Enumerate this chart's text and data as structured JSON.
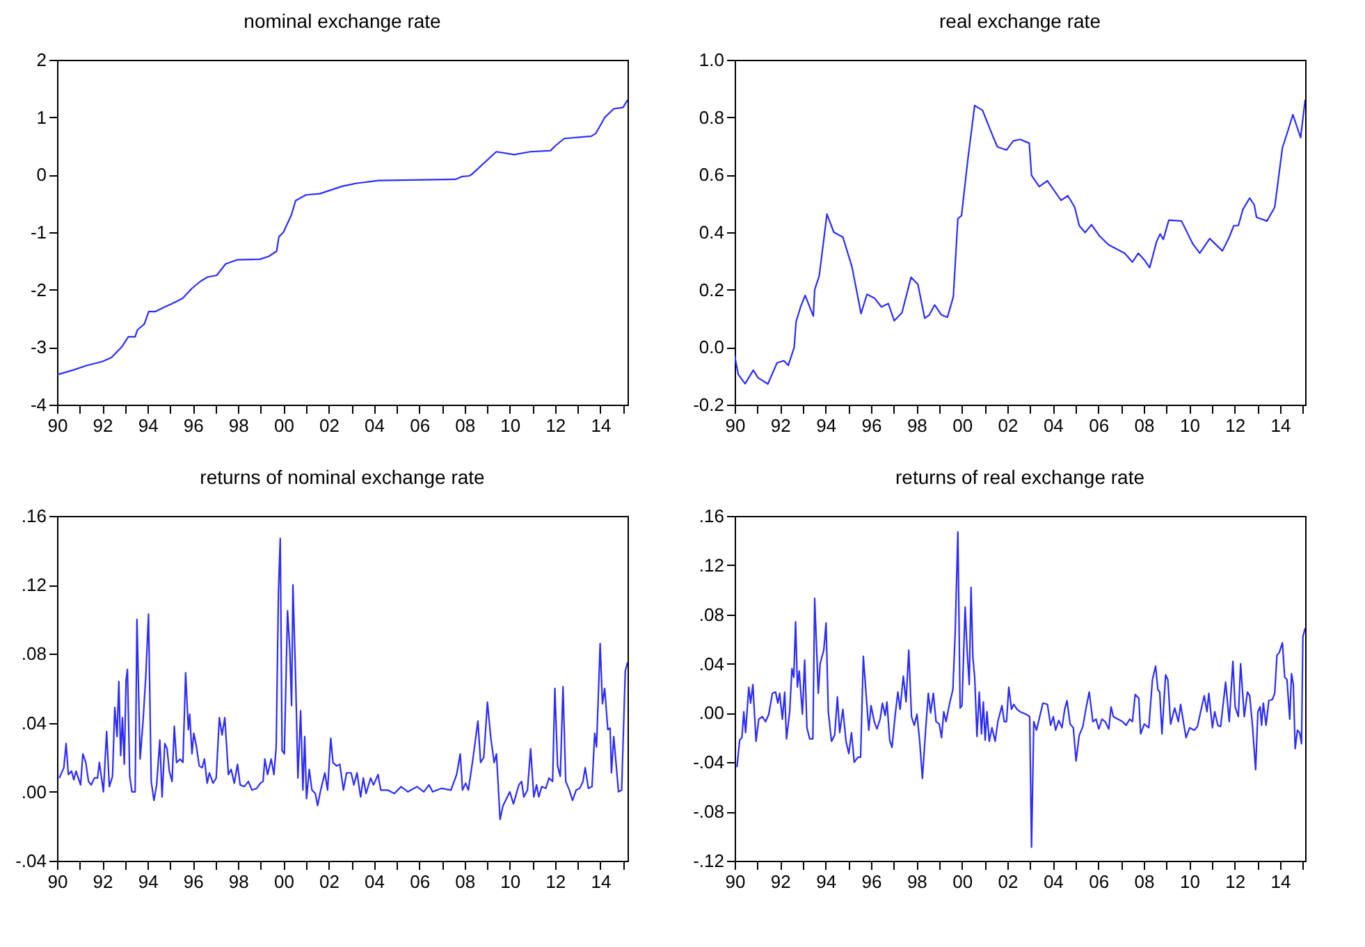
{
  "chart_data": [
    {
      "type": "line",
      "title": "nominal exchange rate",
      "x": [
        1990.0,
        1990.7,
        1991.3,
        1992.0,
        1992.4,
        1992.85,
        1993.15,
        1993.45,
        1993.55,
        1993.85,
        1994.05,
        1994.35,
        1994.75,
        1995.05,
        1995.55,
        1995.95,
        1996.35,
        1996.65,
        1997.05,
        1997.45,
        1997.95,
        1998.95,
        1999.35,
        1999.7,
        1999.8,
        2000.0,
        2000.35,
        2000.54,
        2001.0,
        2001.6,
        2002.6,
        2003.2,
        2004.2,
        2007.6,
        2007.9,
        2008.2,
        2008.3,
        2009.4,
        2010.2,
        2010.9,
        2011.8,
        2012.0,
        2012.4,
        2013.6,
        2013.8,
        2014.2,
        2014.6,
        2015.0,
        2015.2
      ],
      "series": [
        {
          "color": "#2b2bff",
          "values": [
            -3.48,
            -3.4,
            -3.32,
            -3.25,
            -3.18,
            -3.0,
            -2.82,
            -2.82,
            -2.7,
            -2.6,
            -2.38,
            -2.38,
            -2.3,
            -2.25,
            -2.15,
            -1.98,
            -1.85,
            -1.78,
            -1.75,
            -1.55,
            -1.48,
            -1.47,
            -1.42,
            -1.33,
            -1.08,
            -1.0,
            -0.7,
            -0.45,
            -0.35,
            -0.33,
            -0.2,
            -0.15,
            -0.1,
            -0.08,
            -0.03,
            -0.02,
            0.0,
            0.4,
            0.35,
            0.4,
            0.42,
            0.5,
            0.63,
            0.67,
            0.72,
            1.0,
            1.15,
            1.17,
            1.3
          ]
        }
      ],
      "xlim": [
        1990,
        2015.2
      ],
      "ylim": [
        -4,
        2
      ],
      "yticks": [
        -4,
        -3,
        -2,
        -1,
        0,
        1,
        2
      ],
      "xticks": [
        {
          "value": 1990,
          "label": "90"
        },
        {
          "value": 1991,
          "label": null
        },
        {
          "value": 1992,
          "label": "92"
        },
        {
          "value": 1993,
          "label": null
        },
        {
          "value": 1994,
          "label": "94"
        },
        {
          "value": 1995,
          "label": null
        },
        {
          "value": 1996,
          "label": "96"
        },
        {
          "value": 1997,
          "label": null
        },
        {
          "value": 1998,
          "label": "98"
        },
        {
          "value": 1999,
          "label": null
        },
        {
          "value": 2000,
          "label": "00"
        },
        {
          "value": 2001,
          "label": null
        },
        {
          "value": 2002,
          "label": "02"
        },
        {
          "value": 2003,
          "label": null
        },
        {
          "value": 2004,
          "label": "04"
        },
        {
          "value": 2005,
          "label": null
        },
        {
          "value": 2006,
          "label": "06"
        },
        {
          "value": 2007,
          "label": null
        },
        {
          "value": 2008,
          "label": "08"
        },
        {
          "value": 2009,
          "label": null
        },
        {
          "value": 2010,
          "label": "10"
        },
        {
          "value": 2011,
          "label": null
        },
        {
          "value": 2012,
          "label": "12"
        },
        {
          "value": 2013,
          "label": null
        },
        {
          "value": 2014,
          "label": "14"
        },
        {
          "value": 2015,
          "label": null
        }
      ],
      "grid": false,
      "line_style": "solid"
    },
    {
      "type": "line",
      "title": "real exchange rate",
      "x": [
        1990.0,
        1990.16,
        1990.46,
        1990.82,
        1991.02,
        1991.46,
        1991.86,
        1992.16,
        1992.36,
        1992.62,
        1992.7,
        1992.9,
        1993.1,
        1993.46,
        1993.52,
        1993.72,
        1994.06,
        1994.36,
        1994.76,
        1995.16,
        1995.56,
        1995.82,
        1996.16,
        1996.46,
        1996.76,
        1997.02,
        1997.36,
        1997.76,
        1998.06,
        1998.36,
        1998.56,
        1998.8,
        1999.1,
        1999.36,
        1999.62,
        1999.82,
        1999.98,
        2000.26,
        2000.56,
        2000.7,
        2000.9,
        2001.36,
        2001.56,
        2001.96,
        2002.26,
        2002.56,
        2002.96,
        2003.06,
        2003.4,
        2003.76,
        2004.36,
        2004.66,
        2004.96,
        2005.16,
        2005.42,
        2005.7,
        2006.06,
        2006.46,
        2007.16,
        2007.5,
        2007.76,
        2008.02,
        2008.26,
        2008.56,
        2008.72,
        2008.86,
        2009.1,
        2009.66,
        2010.16,
        2010.46,
        2010.9,
        2011.46,
        2011.76,
        2011.96,
        2012.16,
        2012.36,
        2012.66,
        2012.86,
        2012.96,
        2013.42,
        2013.76,
        2014.1,
        2014.36,
        2014.56,
        2014.9,
        2015.1
      ],
      "series": [
        {
          "color": "#2b2bff",
          "values": [
            -0.03,
            -0.095,
            -0.127,
            -0.08,
            -0.106,
            -0.128,
            -0.055,
            -0.047,
            -0.063,
            0.0,
            0.088,
            0.14,
            0.18,
            0.108,
            0.2,
            0.248,
            0.463,
            0.4,
            0.383,
            0.28,
            0.117,
            0.184,
            0.17,
            0.14,
            0.152,
            0.092,
            0.12,
            0.243,
            0.219,
            0.101,
            0.112,
            0.147,
            0.112,
            0.104,
            0.176,
            0.447,
            0.458,
            0.654,
            0.841,
            0.834,
            0.825,
            0.734,
            0.697,
            0.686,
            0.718,
            0.723,
            0.71,
            0.598,
            0.559,
            0.579,
            0.511,
            0.527,
            0.487,
            0.423,
            0.399,
            0.426,
            0.386,
            0.356,
            0.327,
            0.296,
            0.327,
            0.304,
            0.277,
            0.367,
            0.394,
            0.375,
            0.442,
            0.439,
            0.359,
            0.327,
            0.378,
            0.335,
            0.383,
            0.423,
            0.423,
            0.479,
            0.519,
            0.495,
            0.452,
            0.439,
            0.487,
            0.694,
            0.758,
            0.809,
            0.729,
            0.861
          ]
        }
      ],
      "xlim": [
        1990,
        2015.1
      ],
      "ylim": [
        -0.2,
        1.0
      ],
      "yticks": [
        {
          "value": -0.2,
          "label": "-0.2"
        },
        {
          "value": 0,
          "label": "0.0"
        },
        {
          "value": 0.2,
          "label": "0.2"
        },
        {
          "value": 0.4,
          "label": "0.4"
        },
        {
          "value": 0.6,
          "label": "0.6"
        },
        {
          "value": 0.8,
          "label": "0.8"
        },
        {
          "value": 1.0,
          "label": "1.0"
        }
      ],
      "xticks": [
        {
          "value": 1990,
          "label": "90"
        },
        {
          "value": 1991,
          "label": null
        },
        {
          "value": 1992,
          "label": "92"
        },
        {
          "value": 1993,
          "label": null
        },
        {
          "value": 1994,
          "label": "94"
        },
        {
          "value": 1995,
          "label": null
        },
        {
          "value": 1996,
          "label": "96"
        },
        {
          "value": 1997,
          "label": null
        },
        {
          "value": 1998,
          "label": "98"
        },
        {
          "value": 1999,
          "label": null
        },
        {
          "value": 2000,
          "label": "00"
        },
        {
          "value": 2001,
          "label": null
        },
        {
          "value": 2002,
          "label": "02"
        },
        {
          "value": 2003,
          "label": null
        },
        {
          "value": 2004,
          "label": "04"
        },
        {
          "value": 2005,
          "label": null
        },
        {
          "value": 2006,
          "label": "06"
        },
        {
          "value": 2007,
          "label": null
        },
        {
          "value": 2008,
          "label": "08"
        },
        {
          "value": 2009,
          "label": null
        },
        {
          "value": 2010,
          "label": "10"
        },
        {
          "value": 2011,
          "label": null
        },
        {
          "value": 2012,
          "label": "12"
        },
        {
          "value": 2013,
          "label": null
        },
        {
          "value": 2014,
          "label": "14"
        },
        {
          "value": 2015,
          "label": null
        }
      ],
      "grid": false,
      "line_style": "solid"
    },
    {
      "type": "line",
      "title": "returns of nominal exchange rate",
      "x": [
        1990.1,
        1990.3,
        1990.4,
        1990.5,
        1990.64,
        1990.74,
        1990.84,
        1991.04,
        1991.14,
        1991.27,
        1991.39,
        1991.51,
        1991.65,
        1991.79,
        1991.87,
        1992.05,
        1992.19,
        1992.31,
        1992.45,
        1992.55,
        1992.65,
        1992.73,
        1992.81,
        1992.89,
        1992.97,
        1993.05,
        1993.11,
        1993.21,
        1993.31,
        1993.45,
        1993.53,
        1993.67,
        1993.8,
        1993.92,
        1994.04,
        1994.16,
        1994.28,
        1994.4,
        1994.54,
        1994.64,
        1994.76,
        1994.86,
        1994.96,
        1995.08,
        1995.18,
        1995.28,
        1995.44,
        1995.56,
        1995.68,
        1995.8,
        1995.86,
        1995.96,
        1996.04,
        1996.16,
        1996.28,
        1996.41,
        1996.51,
        1996.63,
        1996.73,
        1996.89,
        1997.03,
        1997.17,
        1997.29,
        1997.41,
        1997.57,
        1997.69,
        1997.83,
        1997.97,
        1998.09,
        1998.27,
        1998.45,
        1998.61,
        1998.82,
        1998.98,
        1999.1,
        1999.18,
        1999.3,
        1999.46,
        1999.58,
        1999.68,
        1999.78,
        1999.86,
        1999.94,
        2000.04,
        2000.18,
        2000.28,
        2000.36,
        2000.42,
        2000.54,
        2000.64,
        2000.76,
        2000.86,
        2000.94,
        2001.02,
        2001.14,
        2001.26,
        2001.41,
        2001.51,
        2001.63,
        2001.83,
        2001.95,
        2002.09,
        2002.19,
        2002.35,
        2002.49,
        2002.65,
        2002.79,
        2002.99,
        2003.11,
        2003.25,
        2003.41,
        2003.53,
        2003.65,
        2003.85,
        2003.98,
        2004.18,
        2004.3,
        2004.6,
        2004.9,
        2005.2,
        2005.5,
        2005.9,
        2006.2,
        2006.43,
        2006.59,
        2006.99,
        2007.4,
        2007.65,
        2007.81,
        2007.91,
        2008.05,
        2008.17,
        2008.37,
        2008.59,
        2008.71,
        2008.85,
        2009.01,
        2009.17,
        2009.31,
        2009.41,
        2009.57,
        2009.7,
        2010.0,
        2010.16,
        2010.4,
        2010.52,
        2010.62,
        2010.78,
        2010.92,
        2011.06,
        2011.18,
        2011.28,
        2011.41,
        2011.59,
        2011.73,
        2011.89,
        2011.99,
        2012.11,
        2012.23,
        2012.35,
        2012.47,
        2012.63,
        2012.77,
        2012.93,
        2013.09,
        2013.23,
        2013.33,
        2013.47,
        2013.63,
        2013.75,
        2013.83,
        2013.99,
        2014.09,
        2014.19,
        2014.33,
        2014.43,
        2014.49,
        2014.59,
        2014.71,
        2014.8,
        2014.94,
        2015.1,
        2015.2
      ],
      "series": [
        {
          "color": "#2b2bff",
          "values": [
            0.008,
            0.014,
            0.028,
            0.01,
            0.012,
            0.007,
            0.012,
            0.004,
            0.022,
            0.017,
            0.006,
            0.004,
            0.008,
            0.008,
            0.017,
            0.0,
            0.035,
            0.003,
            0.009,
            0.049,
            0.032,
            0.064,
            0.021,
            0.043,
            0.016,
            0.065,
            0.071,
            0.009,
            0.0,
            0.0,
            0.1,
            0.019,
            0.041,
            0.067,
            0.103,
            0.006,
            -0.005,
            0.004,
            0.03,
            -0.003,
            0.028,
            0.025,
            0.012,
            0.006,
            0.038,
            0.017,
            0.019,
            0.017,
            0.069,
            0.036,
            0.045,
            0.022,
            0.034,
            0.026,
            0.015,
            0.014,
            0.019,
            0.005,
            0.011,
            0.005,
            0.008,
            0.043,
            0.033,
            0.043,
            0.01,
            0.013,
            0.005,
            0.016,
            0.004,
            0.003,
            0.006,
            0.001,
            0.002,
            0.005,
            0.006,
            0.019,
            0.01,
            0.019,
            0.01,
            0.026,
            0.116,
            0.147,
            0.024,
            0.022,
            0.105,
            0.083,
            0.05,
            0.12,
            0.065,
            0.008,
            0.047,
            0.001,
            0.032,
            -0.004,
            0.013,
            0.001,
            -0.001,
            -0.008,
            0.0,
            0.011,
            0.001,
            0.031,
            0.017,
            0.015,
            0.016,
            0.001,
            0.011,
            0.011,
            0.004,
            0.011,
            -0.003,
            0.008,
            -0.001,
            0.008,
            0.004,
            0.01,
            0.001,
            0.001,
            -0.001,
            0.003,
            0.0,
            0.003,
            0.0,
            0.004,
            0.0,
            0.002,
            0.001,
            0.01,
            0.022,
            0.001,
            0.005,
            0.001,
            0.019,
            0.041,
            0.017,
            0.02,
            0.052,
            0.03,
            0.017,
            0.022,
            -0.016,
            -0.008,
            0.0,
            -0.007,
            0.004,
            0.006,
            -0.003,
            0.001,
            0.025,
            -0.003,
            0.004,
            -0.003,
            0.003,
            0.002,
            0.008,
            0.006,
            0.06,
            0.015,
            0.009,
            0.061,
            0.006,
            0.001,
            -0.005,
            0.001,
            0.002,
            0.006,
            0.014,
            0.002,
            0.003,
            0.034,
            0.026,
            0.086,
            0.051,
            0.06,
            0.036,
            0.037,
            0.011,
            0.032,
            0.014,
            0.0,
            0.001,
            0.07,
            0.075
          ]
        }
      ],
      "xlim": [
        1990,
        2015.2
      ],
      "ylim": [
        -0.04,
        0.16
      ],
      "yticks": [
        {
          "value": -0.04,
          "label": "-.04"
        },
        {
          "value": 0,
          "label": ".00"
        },
        {
          "value": 0.04,
          "label": ".04"
        },
        {
          "value": 0.08,
          "label": ".08"
        },
        {
          "value": 0.12,
          "label": ".12"
        },
        {
          "value": 0.16,
          "label": ".16"
        }
      ],
      "xticks": [
        {
          "value": 1990,
          "label": "90"
        },
        {
          "value": 1991,
          "label": null
        },
        {
          "value": 1992,
          "label": "92"
        },
        {
          "value": 1993,
          "label": null
        },
        {
          "value": 1994,
          "label": "94"
        },
        {
          "value": 1995,
          "label": null
        },
        {
          "value": 1996,
          "label": "96"
        },
        {
          "value": 1997,
          "label": null
        },
        {
          "value": 1998,
          "label": "98"
        },
        {
          "value": 1999,
          "label": null
        },
        {
          "value": 2000,
          "label": "00"
        },
        {
          "value": 2001,
          "label": null
        },
        {
          "value": 2002,
          "label": "02"
        },
        {
          "value": 2003,
          "label": null
        },
        {
          "value": 2004,
          "label": "04"
        },
        {
          "value": 2005,
          "label": null
        },
        {
          "value": 2006,
          "label": "06"
        },
        {
          "value": 2007,
          "label": null
        },
        {
          "value": 2008,
          "label": "08"
        },
        {
          "value": 2009,
          "label": null
        },
        {
          "value": 2010,
          "label": "10"
        },
        {
          "value": 2011,
          "label": null
        },
        {
          "value": 2012,
          "label": "12"
        },
        {
          "value": 2013,
          "label": null
        },
        {
          "value": 2014,
          "label": "14"
        },
        {
          "value": 2015,
          "label": null
        }
      ],
      "grid": false,
      "line_style": "solid"
    },
    {
      "type": "line",
      "title": "returns of real exchange rate",
      "x": [
        1990.1,
        1990.22,
        1990.32,
        1990.4,
        1990.48,
        1990.62,
        1990.7,
        1990.8,
        1990.94,
        1991.06,
        1991.22,
        1991.36,
        1991.5,
        1991.66,
        1991.8,
        1991.9,
        1991.98,
        1992.1,
        1992.2,
        1992.28,
        1992.42,
        1992.52,
        1992.6,
        1992.68,
        1992.76,
        1992.84,
        1992.98,
        1993.08,
        1993.18,
        1993.3,
        1993.44,
        1993.52,
        1993.68,
        1993.76,
        1993.92,
        1994.02,
        1994.12,
        1994.26,
        1994.4,
        1994.52,
        1994.62,
        1994.76,
        1994.9,
        1995.02,
        1995.14,
        1995.26,
        1995.42,
        1995.54,
        1995.66,
        1995.78,
        1995.9,
        1996.0,
        1996.14,
        1996.26,
        1996.4,
        1996.5,
        1996.62,
        1996.7,
        1996.82,
        1996.92,
        1997.06,
        1997.18,
        1997.28,
        1997.42,
        1997.54,
        1997.66,
        1997.78,
        1997.9,
        1998.02,
        1998.14,
        1998.26,
        1998.4,
        1998.52,
        1998.62,
        1998.74,
        1998.86,
        1999.0,
        1999.1,
        1999.2,
        1999.3,
        1999.46,
        1999.6,
        1999.7,
        1999.82,
        1999.92,
        2000.0,
        2000.14,
        2000.22,
        2000.32,
        2000.4,
        2000.48,
        2000.56,
        2000.66,
        2000.76,
        2000.86,
        2000.94,
        2001.02,
        2001.1,
        2001.2,
        2001.32,
        2001.46,
        2001.58,
        2001.66,
        2001.76,
        2001.86,
        2001.96,
        2002.06,
        2002.18,
        2002.28,
        2002.42,
        2002.56,
        2002.82,
        2002.98,
        2003.06,
        2003.16,
        2003.28,
        2003.42,
        2003.56,
        2003.76,
        2003.9,
        2004.02,
        2004.12,
        2004.26,
        2004.4,
        2004.52,
        2004.62,
        2004.76,
        2004.9,
        2005.02,
        2005.16,
        2005.32,
        2005.46,
        2005.6,
        2005.76,
        2005.9,
        2006.02,
        2006.16,
        2006.3,
        2006.46,
        2006.56,
        2006.66,
        2006.86,
        2007.06,
        2007.22,
        2007.38,
        2007.5,
        2007.62,
        2007.78,
        2007.86,
        2008.02,
        2008.22,
        2008.38,
        2008.52,
        2008.62,
        2008.7,
        2008.8,
        2008.96,
        2009.06,
        2009.18,
        2009.36,
        2009.52,
        2009.62,
        2009.76,
        2009.86,
        2010.02,
        2010.22,
        2010.36,
        2010.5,
        2010.66,
        2010.78,
        2010.86,
        2011.02,
        2011.12,
        2011.26,
        2011.38,
        2011.6,
        2011.76,
        2011.92,
        2012.02,
        2012.16,
        2012.26,
        2012.42,
        2012.56,
        2012.66,
        2012.78,
        2012.92,
        2013.02,
        2013.12,
        2013.18,
        2013.26,
        2013.38,
        2013.5,
        2013.66,
        2013.76,
        2013.86,
        2013.96,
        2014.1,
        2014.2,
        2014.3,
        2014.42,
        2014.5,
        2014.58,
        2014.66,
        2014.76,
        2014.86,
        2014.94,
        2015.0,
        2015.1
      ],
      "series": [
        {
          "color": "#2b2bff",
          "values": [
            -0.044,
            -0.022,
            -0.02,
            0.001,
            -0.016,
            0.021,
            0.008,
            0.023,
            -0.023,
            -0.005,
            -0.003,
            -0.007,
            -0.001,
            0.016,
            0.017,
            0.008,
            0.016,
            -0.005,
            0.017,
            -0.021,
            0.001,
            0.036,
            0.029,
            0.074,
            0.021,
            0.034,
            -0.001,
            0.043,
            -0.012,
            -0.021,
            -0.021,
            0.093,
            0.016,
            0.04,
            0.051,
            0.073,
            0.001,
            -0.023,
            -0.018,
            0.013,
            -0.016,
            0.003,
            -0.023,
            -0.033,
            -0.016,
            -0.04,
            -0.036,
            -0.036,
            0.046,
            0.016,
            -0.014,
            0.006,
            -0.007,
            -0.013,
            -0.005,
            0.008,
            -0.002,
            0.009,
            -0.022,
            -0.028,
            -0.002,
            0.017,
            0.003,
            0.03,
            0.009,
            0.051,
            -0.003,
            -0.01,
            -0.001,
            -0.023,
            -0.053,
            -0.014,
            0.016,
            0.0,
            0.016,
            -0.007,
            -0.009,
            -0.02,
            0.001,
            -0.007,
            0.008,
            0.019,
            0.064,
            0.147,
            0.004,
            0.006,
            0.086,
            0.053,
            0.023,
            0.102,
            0.045,
            0.029,
            -0.019,
            0.017,
            -0.017,
            0.009,
            -0.022,
            0.001,
            -0.023,
            -0.012,
            -0.023,
            -0.007,
            -0.001,
            0.006,
            -0.007,
            -0.007,
            0.021,
            0.003,
            0.007,
            0.003,
            0.001,
            -0.001,
            -0.003,
            -0.109,
            -0.007,
            -0.014,
            -0.003,
            0.008,
            0.007,
            -0.01,
            -0.003,
            -0.014,
            -0.006,
            -0.012,
            0.003,
            0.01,
            -0.009,
            -0.012,
            -0.039,
            -0.018,
            -0.011,
            0.004,
            0.017,
            -0.007,
            -0.005,
            -0.013,
            -0.005,
            -0.007,
            -0.013,
            0.005,
            -0.003,
            -0.005,
            -0.007,
            -0.01,
            -0.005,
            -0.007,
            0.015,
            0.012,
            -0.017,
            -0.009,
            -0.012,
            0.027,
            0.038,
            0.019,
            0.017,
            -0.017,
            0.031,
            0.027,
            -0.009,
            0.004,
            -0.007,
            0.007,
            -0.009,
            -0.02,
            -0.012,
            -0.014,
            -0.011,
            0.001,
            0.014,
            0.001,
            0.016,
            -0.012,
            0.001,
            -0.01,
            -0.011,
            0.025,
            -0.007,
            0.042,
            0.005,
            -0.003,
            0.04,
            -0.003,
            0.017,
            0.014,
            -0.01,
            -0.046,
            0.001,
            0.005,
            -0.01,
            0.008,
            -0.01,
            0.01,
            0.011,
            0.016,
            0.047,
            0.049,
            0.057,
            0.029,
            0.027,
            -0.005,
            0.032,
            0.023,
            -0.029,
            -0.014,
            -0.016,
            -0.025,
            0.062,
            0.069
          ]
        }
      ],
      "xlim": [
        1990,
        2015.1
      ],
      "ylim": [
        -0.12,
        0.16
      ],
      "yticks": [
        {
          "value": -0.12,
          "label": "-.12"
        },
        {
          "value": -0.08,
          "label": "-.08"
        },
        {
          "value": -0.04,
          "label": "-.04"
        },
        {
          "value": 0,
          "label": ".00"
        },
        {
          "value": 0.04,
          "label": ".04"
        },
        {
          "value": 0.08,
          "label": ".08"
        },
        {
          "value": 0.12,
          "label": ".12"
        },
        {
          "value": 0.16,
          "label": ".16"
        }
      ],
      "xticks": [
        {
          "value": 1990,
          "label": "90"
        },
        {
          "value": 1991,
          "label": null
        },
        {
          "value": 1992,
          "label": "92"
        },
        {
          "value": 1993,
          "label": null
        },
        {
          "value": 1994,
          "label": "94"
        },
        {
          "value": 1995,
          "label": null
        },
        {
          "value": 1996,
          "label": "96"
        },
        {
          "value": 1997,
          "label": null
        },
        {
          "value": 1998,
          "label": "98"
        },
        {
          "value": 1999,
          "label": null
        },
        {
          "value": 2000,
          "label": "00"
        },
        {
          "value": 2001,
          "label": null
        },
        {
          "value": 2002,
          "label": "02"
        },
        {
          "value": 2003,
          "label": null
        },
        {
          "value": 2004,
          "label": "04"
        },
        {
          "value": 2005,
          "label": null
        },
        {
          "value": 2006,
          "label": "06"
        },
        {
          "value": 2007,
          "label": null
        },
        {
          "value": 2008,
          "label": "08"
        },
        {
          "value": 2009,
          "label": null
        },
        {
          "value": 2010,
          "label": "10"
        },
        {
          "value": 2011,
          "label": null
        },
        {
          "value": 2012,
          "label": "12"
        },
        {
          "value": 2013,
          "label": null
        },
        {
          "value": 2014,
          "label": "14"
        },
        {
          "value": 2015,
          "label": null
        }
      ],
      "grid": false,
      "line_style": "solid"
    }
  ]
}
